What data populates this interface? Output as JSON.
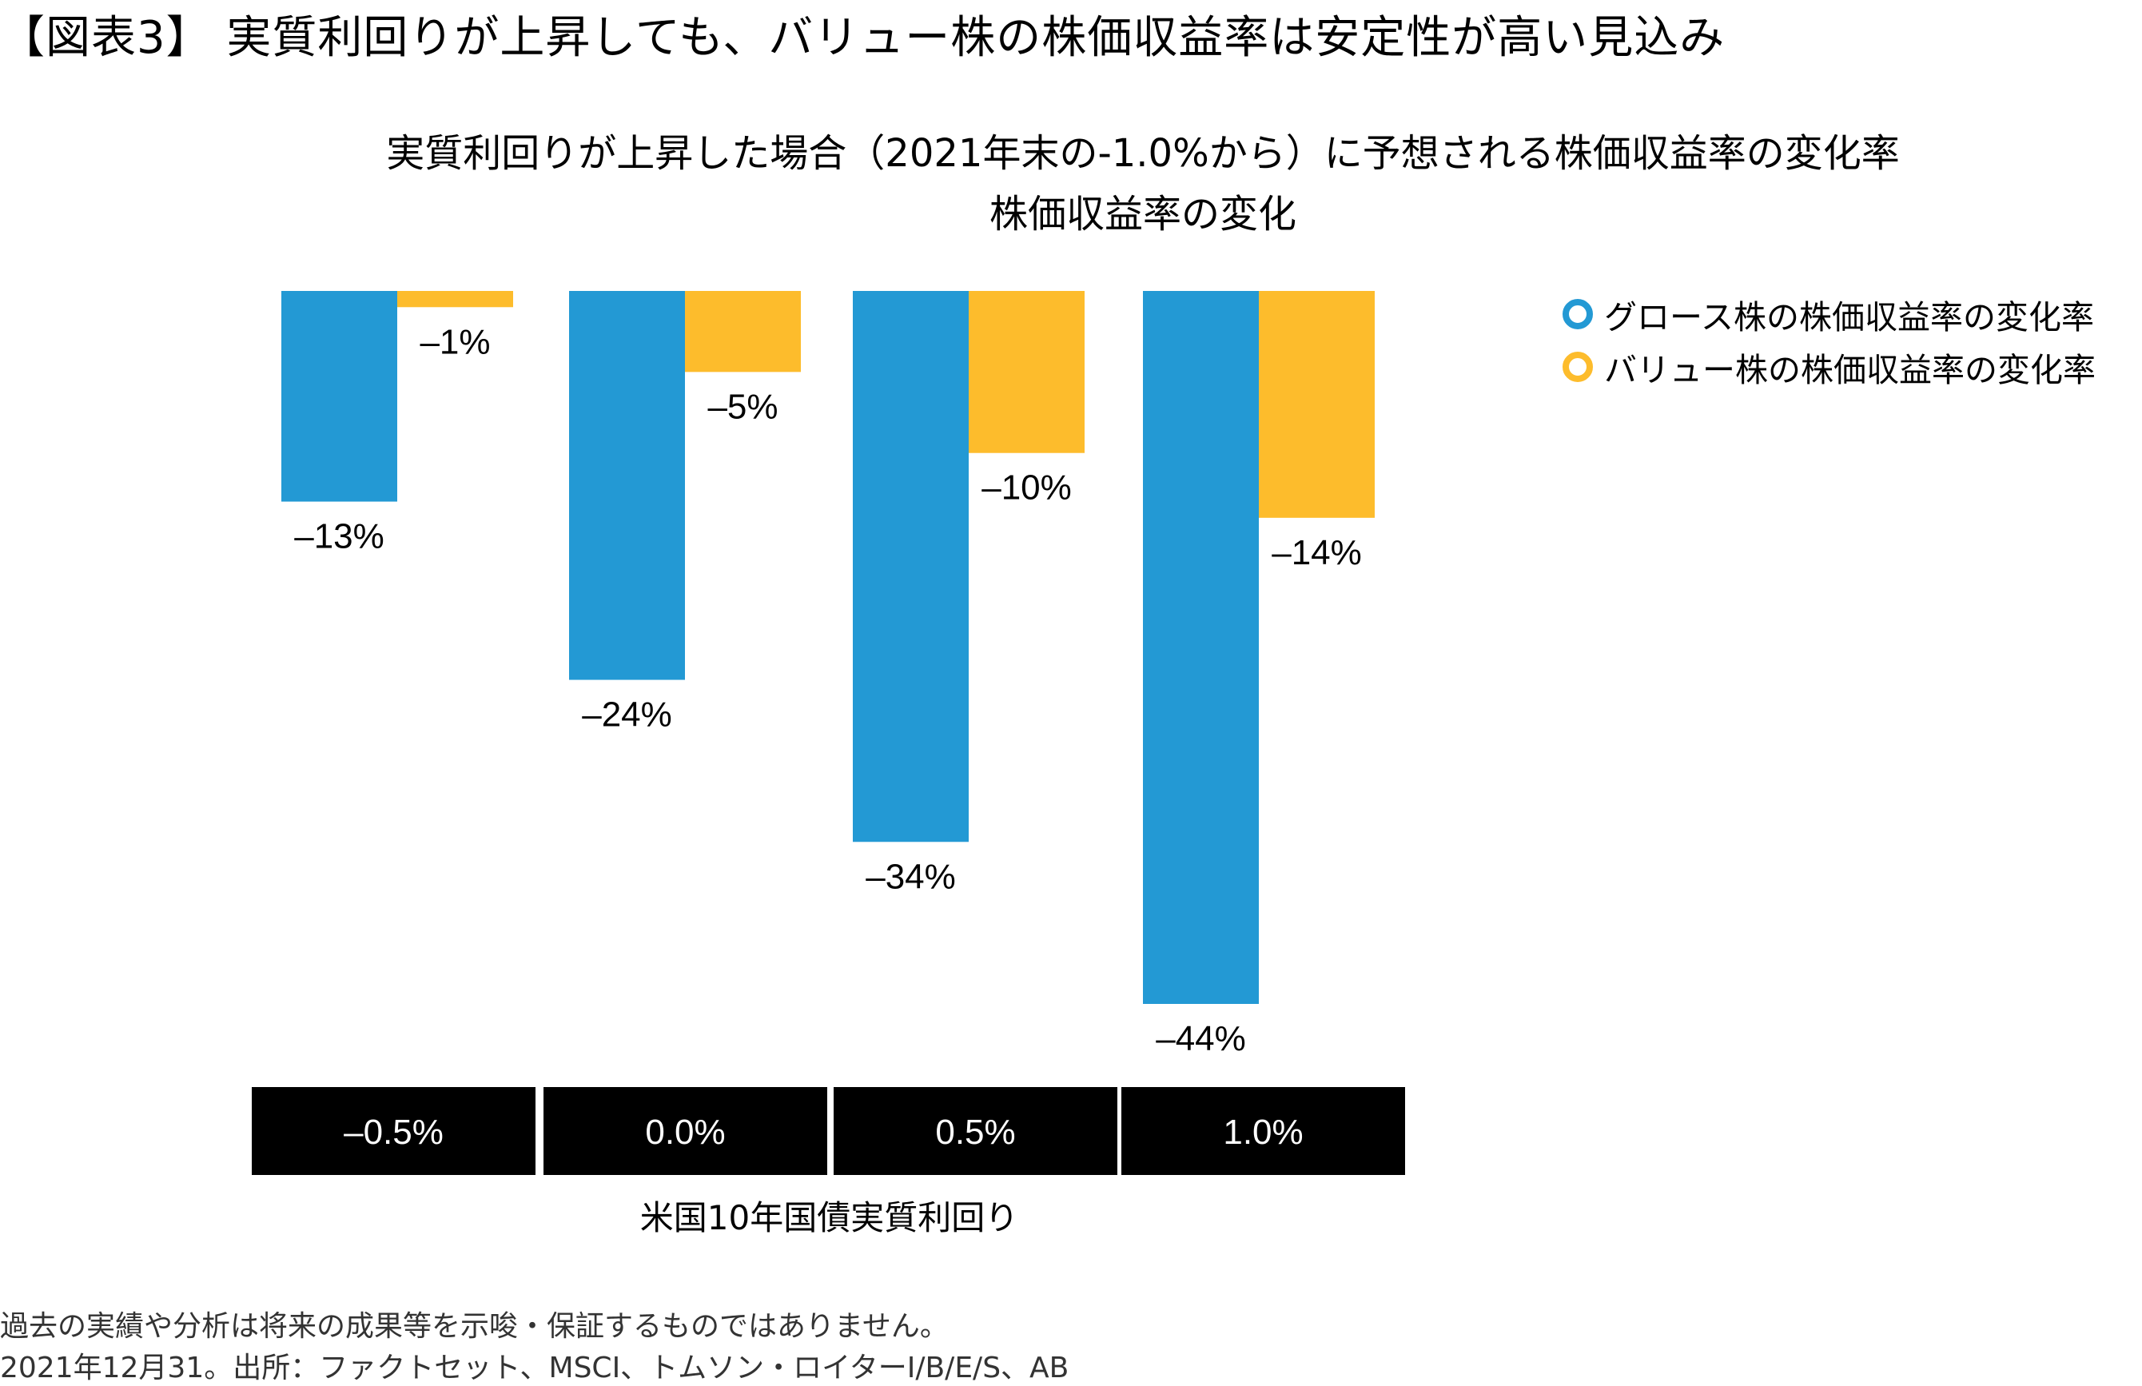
{
  "figure_title": "【図表3】 実質利回りが上昇しても、バリュー株の株価収益率は安定性が高い見込み",
  "footnote_line1": "過去の実績や分析は将来の成果等を示唆・保証するものではありません。",
  "footnote_line2": "2021年12月31。出所：ファクトセット、MSCI、トムソン・ロイターI/B/E/S、AB",
  "chart_data": {
    "type": "bar",
    "title": "実質利回りが上昇した場合（2021年末の-1.0%から）に予想される株価収益率の変化率",
    "subtitle": "株価収益率の変化",
    "xlabel": "米国10年国債実質利回り",
    "ylabel": "",
    "categories": [
      "–0.5%",
      "0.0%",
      "0.5%",
      "1.0%"
    ],
    "ylim": [
      -44,
      0
    ],
    "legend_position": "right",
    "grid": false,
    "series": [
      {
        "name": "グロース株の株価収益率の変化率",
        "color": "#2399D4",
        "values": [
          -13,
          -24,
          -34,
          -44
        ],
        "labels": [
          "–13%",
          "–24%",
          "–34%",
          "–44%"
        ]
      },
      {
        "name": "バリュー株の株価収益率の変化率",
        "color": "#FDBC2C",
        "values": [
          -1,
          -5,
          -10,
          -14
        ],
        "labels": [
          "–1%",
          "–5%",
          "–10%",
          "–14%"
        ]
      }
    ]
  }
}
